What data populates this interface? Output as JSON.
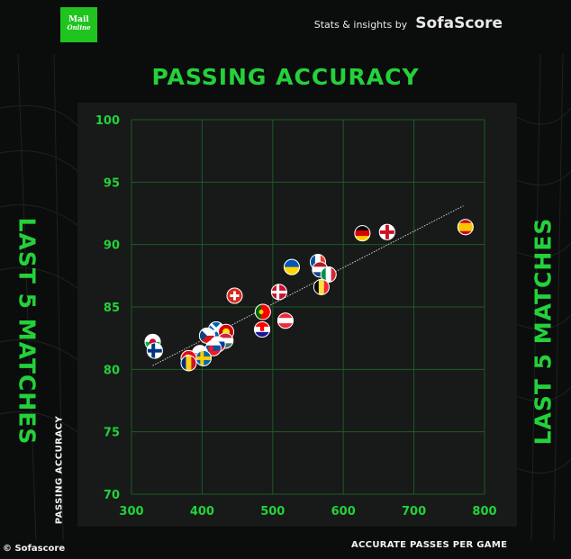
{
  "header": {
    "logo_line1": "Mail",
    "logo_line2": "Online",
    "credit_small": "Stats & insights by",
    "credit_brand": "SofaScore"
  },
  "side_label": "LAST 5 MATCHES",
  "footer": "© Sofascore",
  "colors": {
    "accent": "#24d13a",
    "background": "#0b0d0c",
    "panel": "#171a18",
    "grid": "#1e5a27"
  },
  "chart_data": {
    "type": "scatter",
    "title": "PASSING ACCURACY",
    "xlabel": "ACCURATE PASSES PER GAME",
    "ylabel": "PASSING ACCURACY",
    "xlim": [
      300,
      800
    ],
    "ylim": [
      70,
      100
    ],
    "xticks": [
      300,
      400,
      500,
      600,
      700,
      800
    ],
    "yticks": [
      70,
      75,
      80,
      85,
      90,
      95,
      100
    ],
    "grid": true,
    "trendline": {
      "x": [
        330,
        770
      ],
      "y": [
        80.3,
        93.1
      ]
    },
    "points": [
      {
        "team": "Spain",
        "x": 773,
        "y": 91.4
      },
      {
        "team": "England",
        "x": 662,
        "y": 91.0
      },
      {
        "team": "Germany",
        "x": 627,
        "y": 90.9
      },
      {
        "team": "France",
        "x": 564,
        "y": 88.6
      },
      {
        "team": "Ukraine",
        "x": 527,
        "y": 88.2
      },
      {
        "team": "Netherlands",
        "x": 567,
        "y": 88.0
      },
      {
        "team": "Italy",
        "x": 579,
        "y": 87.6
      },
      {
        "team": "Belgium",
        "x": 569,
        "y": 86.6
      },
      {
        "team": "Denmark",
        "x": 509,
        "y": 86.2
      },
      {
        "team": "Switzerland",
        "x": 446,
        "y": 85.9
      },
      {
        "team": "Portugal",
        "x": 486,
        "y": 84.6
      },
      {
        "team": "Austria",
        "x": 518,
        "y": 83.9
      },
      {
        "team": "Croatia",
        "x": 485,
        "y": 83.2
      },
      {
        "team": "Scotland",
        "x": 420,
        "y": 83.2
      },
      {
        "team": "North Macedonia",
        "x": 434,
        "y": 83.0
      },
      {
        "team": "Czech Republic",
        "x": 407,
        "y": 82.7
      },
      {
        "team": "Hungary",
        "x": 433,
        "y": 82.3
      },
      {
        "team": "Russia",
        "x": 422,
        "y": 82.0
      },
      {
        "team": "Slovakia",
        "x": 416,
        "y": 81.7
      },
      {
        "team": "Wales",
        "x": 330,
        "y": 82.2
      },
      {
        "team": "Finland",
        "x": 333,
        "y": 81.5
      },
      {
        "team": "Poland",
        "x": 397,
        "y": 81.3
      },
      {
        "team": "Sweden",
        "x": 402,
        "y": 80.9
      },
      {
        "team": "Turkey",
        "x": 381,
        "y": 80.9
      },
      {
        "team": "Romania",
        "x": 381,
        "y": 80.5
      }
    ]
  }
}
